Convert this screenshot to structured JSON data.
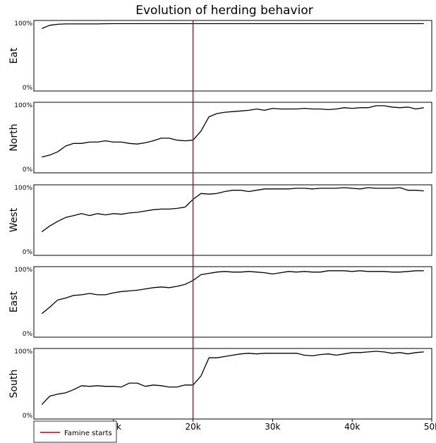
{
  "chart_data": {
    "type": "line",
    "title": "Evolution of herding behavior",
    "x_ticks": [
      {
        "value": 10000,
        "label": "10k"
      },
      {
        "value": 20000,
        "label": "20k"
      },
      {
        "value": 30000,
        "label": "30k"
      },
      {
        "value": 40000,
        "label": "40k"
      },
      {
        "value": 50000,
        "label": "50k"
      }
    ],
    "xlim": [
      0,
      50000
    ],
    "ylim": [
      0,
      100
    ],
    "y_tick_labels": {
      "top": "100%",
      "bottom": "0%"
    },
    "grid": false,
    "legend": {
      "label": "Famine starts",
      "color": "#cc0000",
      "position": "bottom-left"
    },
    "annotation": {
      "type": "vline",
      "x": 20000,
      "color": "#cc0000"
    },
    "x": [
      1000,
      2000,
      3000,
      4000,
      5000,
      6000,
      7000,
      8000,
      9000,
      10000,
      11000,
      12000,
      13000,
      14000,
      15000,
      16000,
      17000,
      18000,
      19000,
      20000,
      21000,
      22000,
      23000,
      24000,
      25000,
      26000,
      27000,
      28000,
      29000,
      30000,
      31000,
      32000,
      33000,
      34000,
      35000,
      36000,
      37000,
      38000,
      39000,
      40000,
      41000,
      42000,
      43000,
      44000,
      45000,
      46000,
      47000,
      48000,
      49000
    ],
    "series": [
      {
        "name": "Eat",
        "values": [
          92,
          97,
          98.5,
          99,
          99,
          99,
          99,
          99,
          99.3,
          99.5,
          99.5,
          99.5,
          99.5,
          99.5,
          99.5,
          99.5,
          99.5,
          99.5,
          99.5,
          99.5,
          99.5,
          99.5,
          99.5,
          99.5,
          99.5,
          99.5,
          99.5,
          99.5,
          99.5,
          99.5,
          99.5,
          99.5,
          99.5,
          99.5,
          99.5,
          99.5,
          99.5,
          99.5,
          99.5,
          99.5,
          99.5,
          99.5,
          99.5,
          99.5,
          99.5,
          99.5,
          99.5,
          99.5,
          99.5
        ]
      },
      {
        "name": "North",
        "values": [
          20,
          23,
          28,
          37,
          41,
          41,
          43,
          43,
          45,
          43,
          43,
          41,
          40,
          42,
          45,
          49,
          49,
          46,
          45,
          46,
          60,
          82,
          87,
          89,
          90,
          91,
          92,
          94,
          92,
          95,
          94,
          94,
          94,
          95,
          94,
          94,
          93,
          94,
          96,
          95,
          96,
          96,
          99,
          99,
          97,
          96,
          97,
          94,
          96
        ]
      },
      {
        "name": "West",
        "values": [
          32,
          41,
          48,
          54,
          57,
          60,
          57,
          60,
          58,
          60,
          59,
          61,
          62,
          64,
          66,
          67,
          67,
          68,
          70,
          82,
          91,
          90,
          91,
          94,
          96,
          96,
          94,
          96,
          98,
          98,
          98,
          98,
          99,
          99,
          98,
          99,
          99,
          99,
          100,
          99,
          98,
          100,
          99,
          99,
          99,
          100,
          96,
          96,
          95
        ]
      },
      {
        "name": "East",
        "values": [
          32,
          42,
          53,
          56,
          60,
          61,
          63,
          61,
          61,
          64,
          66,
          67,
          68,
          70,
          72,
          73,
          72,
          74,
          77,
          83,
          92,
          94,
          96,
          97,
          96,
          96,
          97,
          96,
          95,
          93,
          95,
          97,
          96,
          97,
          96,
          96,
          98,
          98,
          98,
          97,
          98,
          97,
          97,
          97,
          96,
          96,
          97,
          98,
          98
        ]
      },
      {
        "name": "South",
        "values": [
          18,
          31,
          34,
          36,
          41,
          47,
          46,
          47,
          46,
          46,
          45,
          51,
          51,
          46,
          48,
          47,
          45,
          45,
          48,
          48,
          62,
          90,
          90,
          92,
          94,
          96,
          97,
          96,
          97,
          97,
          97,
          97,
          97,
          94,
          93,
          95,
          96,
          94,
          96,
          98,
          98,
          99,
          100,
          99,
          97,
          98,
          96,
          98,
          99
        ]
      }
    ]
  }
}
